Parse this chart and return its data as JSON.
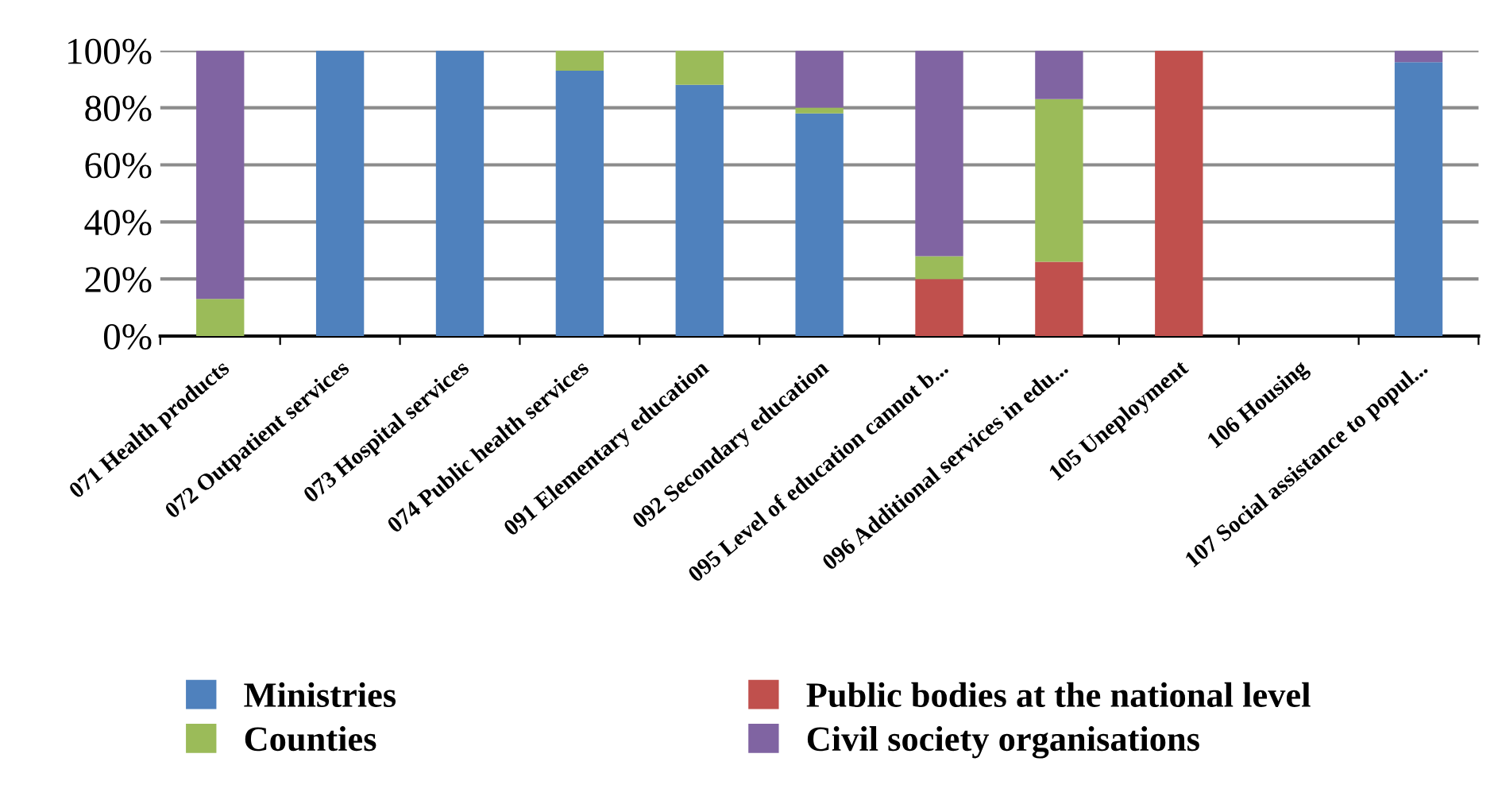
{
  "chart_data": {
    "type": "bar",
    "stacked": true,
    "categories": [
      "071 Health products",
      "072 Outpatient services",
      "073 Hospital services",
      "074 Public health services",
      "091 Elementary education",
      "092 Secondary education",
      "095 Level of education cannot b...",
      "096 Additional services in edu...",
      "105 Uneployment",
      "106 Housing",
      "107 Social assistance to popul..."
    ],
    "series": [
      {
        "name": "Ministries",
        "color": "#4f81bd",
        "values": [
          0,
          100,
          100,
          93,
          88,
          78,
          0,
          0,
          0,
          0,
          96
        ]
      },
      {
        "name": "Public bodies at the national level",
        "color": "#c0504d",
        "values": [
          0,
          0,
          0,
          0,
          0,
          0,
          20,
          26,
          100,
          0,
          0
        ]
      },
      {
        "name": "Counties",
        "color": "#9bbb59",
        "values": [
          13,
          0,
          0,
          7,
          12,
          2,
          8,
          57,
          0,
          0,
          0
        ]
      },
      {
        "name": "Civil society organisations",
        "color": "#8064a2",
        "values": [
          87,
          0,
          0,
          0,
          0,
          20,
          72,
          17,
          0,
          0,
          4
        ]
      }
    ],
    "ylim": [
      0,
      100
    ],
    "yticks": [
      {
        "value": 0,
        "label": "0%"
      },
      {
        "value": 20,
        "label": "20%"
      },
      {
        "value": 40,
        "label": "40%"
      },
      {
        "value": 60,
        "label": "60%"
      },
      {
        "value": 80,
        "label": "80%"
      },
      {
        "value": 100,
        "label": "100%"
      }
    ],
    "grid": "y",
    "legend": "bottom"
  }
}
